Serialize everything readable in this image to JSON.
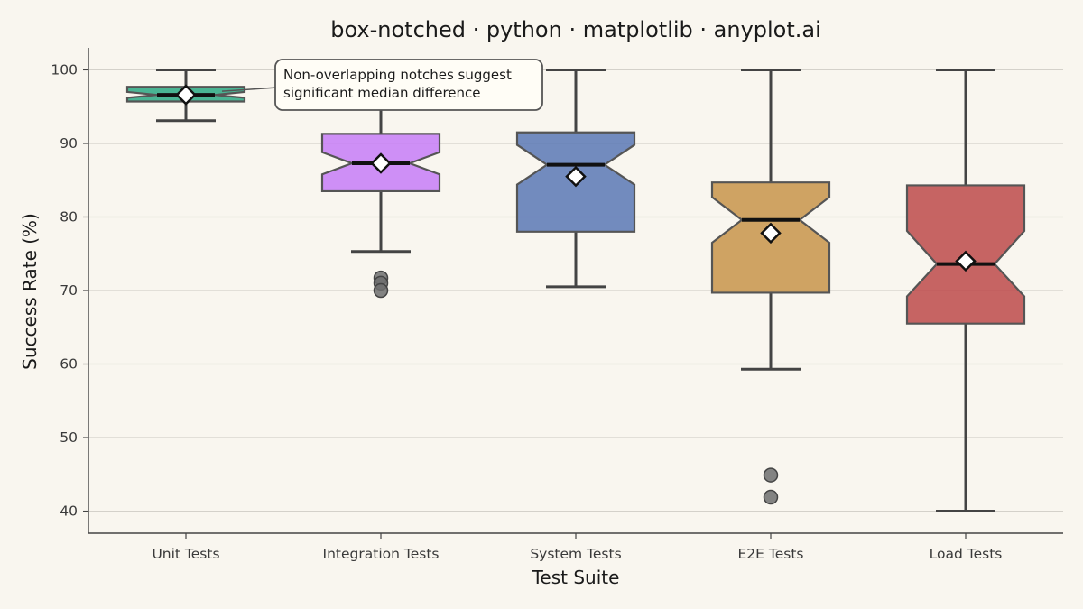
{
  "chart_data": {
    "type": "box-notched",
    "title": "box-notched · python · matplotlib · anyplot.ai",
    "xlabel": "Test Suite",
    "ylabel": "Success Rate (%)",
    "ylim": [
      37,
      103
    ],
    "yticks": [
      40,
      50,
      60,
      70,
      80,
      90,
      100
    ],
    "grid": "horizontal",
    "categories": [
      "Unit Tests",
      "Integration Tests",
      "System Tests",
      "E2E Tests",
      "Load Tests"
    ],
    "series": [
      {
        "category": "Unit Tests",
        "color": "#2aa882",
        "whisker_low": 93.1,
        "q1": 95.7,
        "median": 96.6,
        "q3": 97.7,
        "whisker_high": 100,
        "notch_low": 96.2,
        "notch_high": 97.0,
        "mean": 96.6,
        "outliers": []
      },
      {
        "category": "Integration Tests",
        "color": "#c77df7",
        "whisker_low": 75.3,
        "q1": 83.5,
        "median": 87.3,
        "q3": 91.3,
        "whisker_high": 100,
        "notch_low": 85.8,
        "notch_high": 88.8,
        "mean": 87.3,
        "outliers": [
          71.7,
          71.0,
          70.0
        ]
      },
      {
        "category": "System Tests",
        "color": "#5a78b5",
        "whisker_low": 70.5,
        "q1": 78.0,
        "median": 87.1,
        "q3": 91.5,
        "whisker_high": 100,
        "notch_low": 84.4,
        "notch_high": 89.8,
        "mean": 85.5,
        "outliers": []
      },
      {
        "category": "E2E Tests",
        "color": "#c8944a",
        "whisker_low": 59.3,
        "q1": 69.7,
        "median": 79.6,
        "q3": 84.7,
        "whisker_high": 100,
        "notch_low": 76.5,
        "notch_high": 82.7,
        "mean": 77.8,
        "outliers": [
          44.9,
          41.9
        ]
      },
      {
        "category": "Load Tests",
        "color": "#bd4a4a",
        "whisker_low": 40.0,
        "q1": 65.5,
        "median": 73.6,
        "q3": 84.3,
        "whisker_high": 100,
        "notch_low": 69.2,
        "notch_high": 78.1,
        "mean": 74.0,
        "outliers": []
      }
    ],
    "annotation": {
      "lines": [
        "Non-overlapping notches suggest",
        "significant median difference"
      ],
      "points_to": "Unit Tests"
    }
  },
  "colors": {
    "background": "#f9f6ef",
    "box_edge": "#555555",
    "whisker": "#444444",
    "median": "#111111",
    "outlier": "#6e6e6e",
    "grid": "#d4d1ca"
  }
}
